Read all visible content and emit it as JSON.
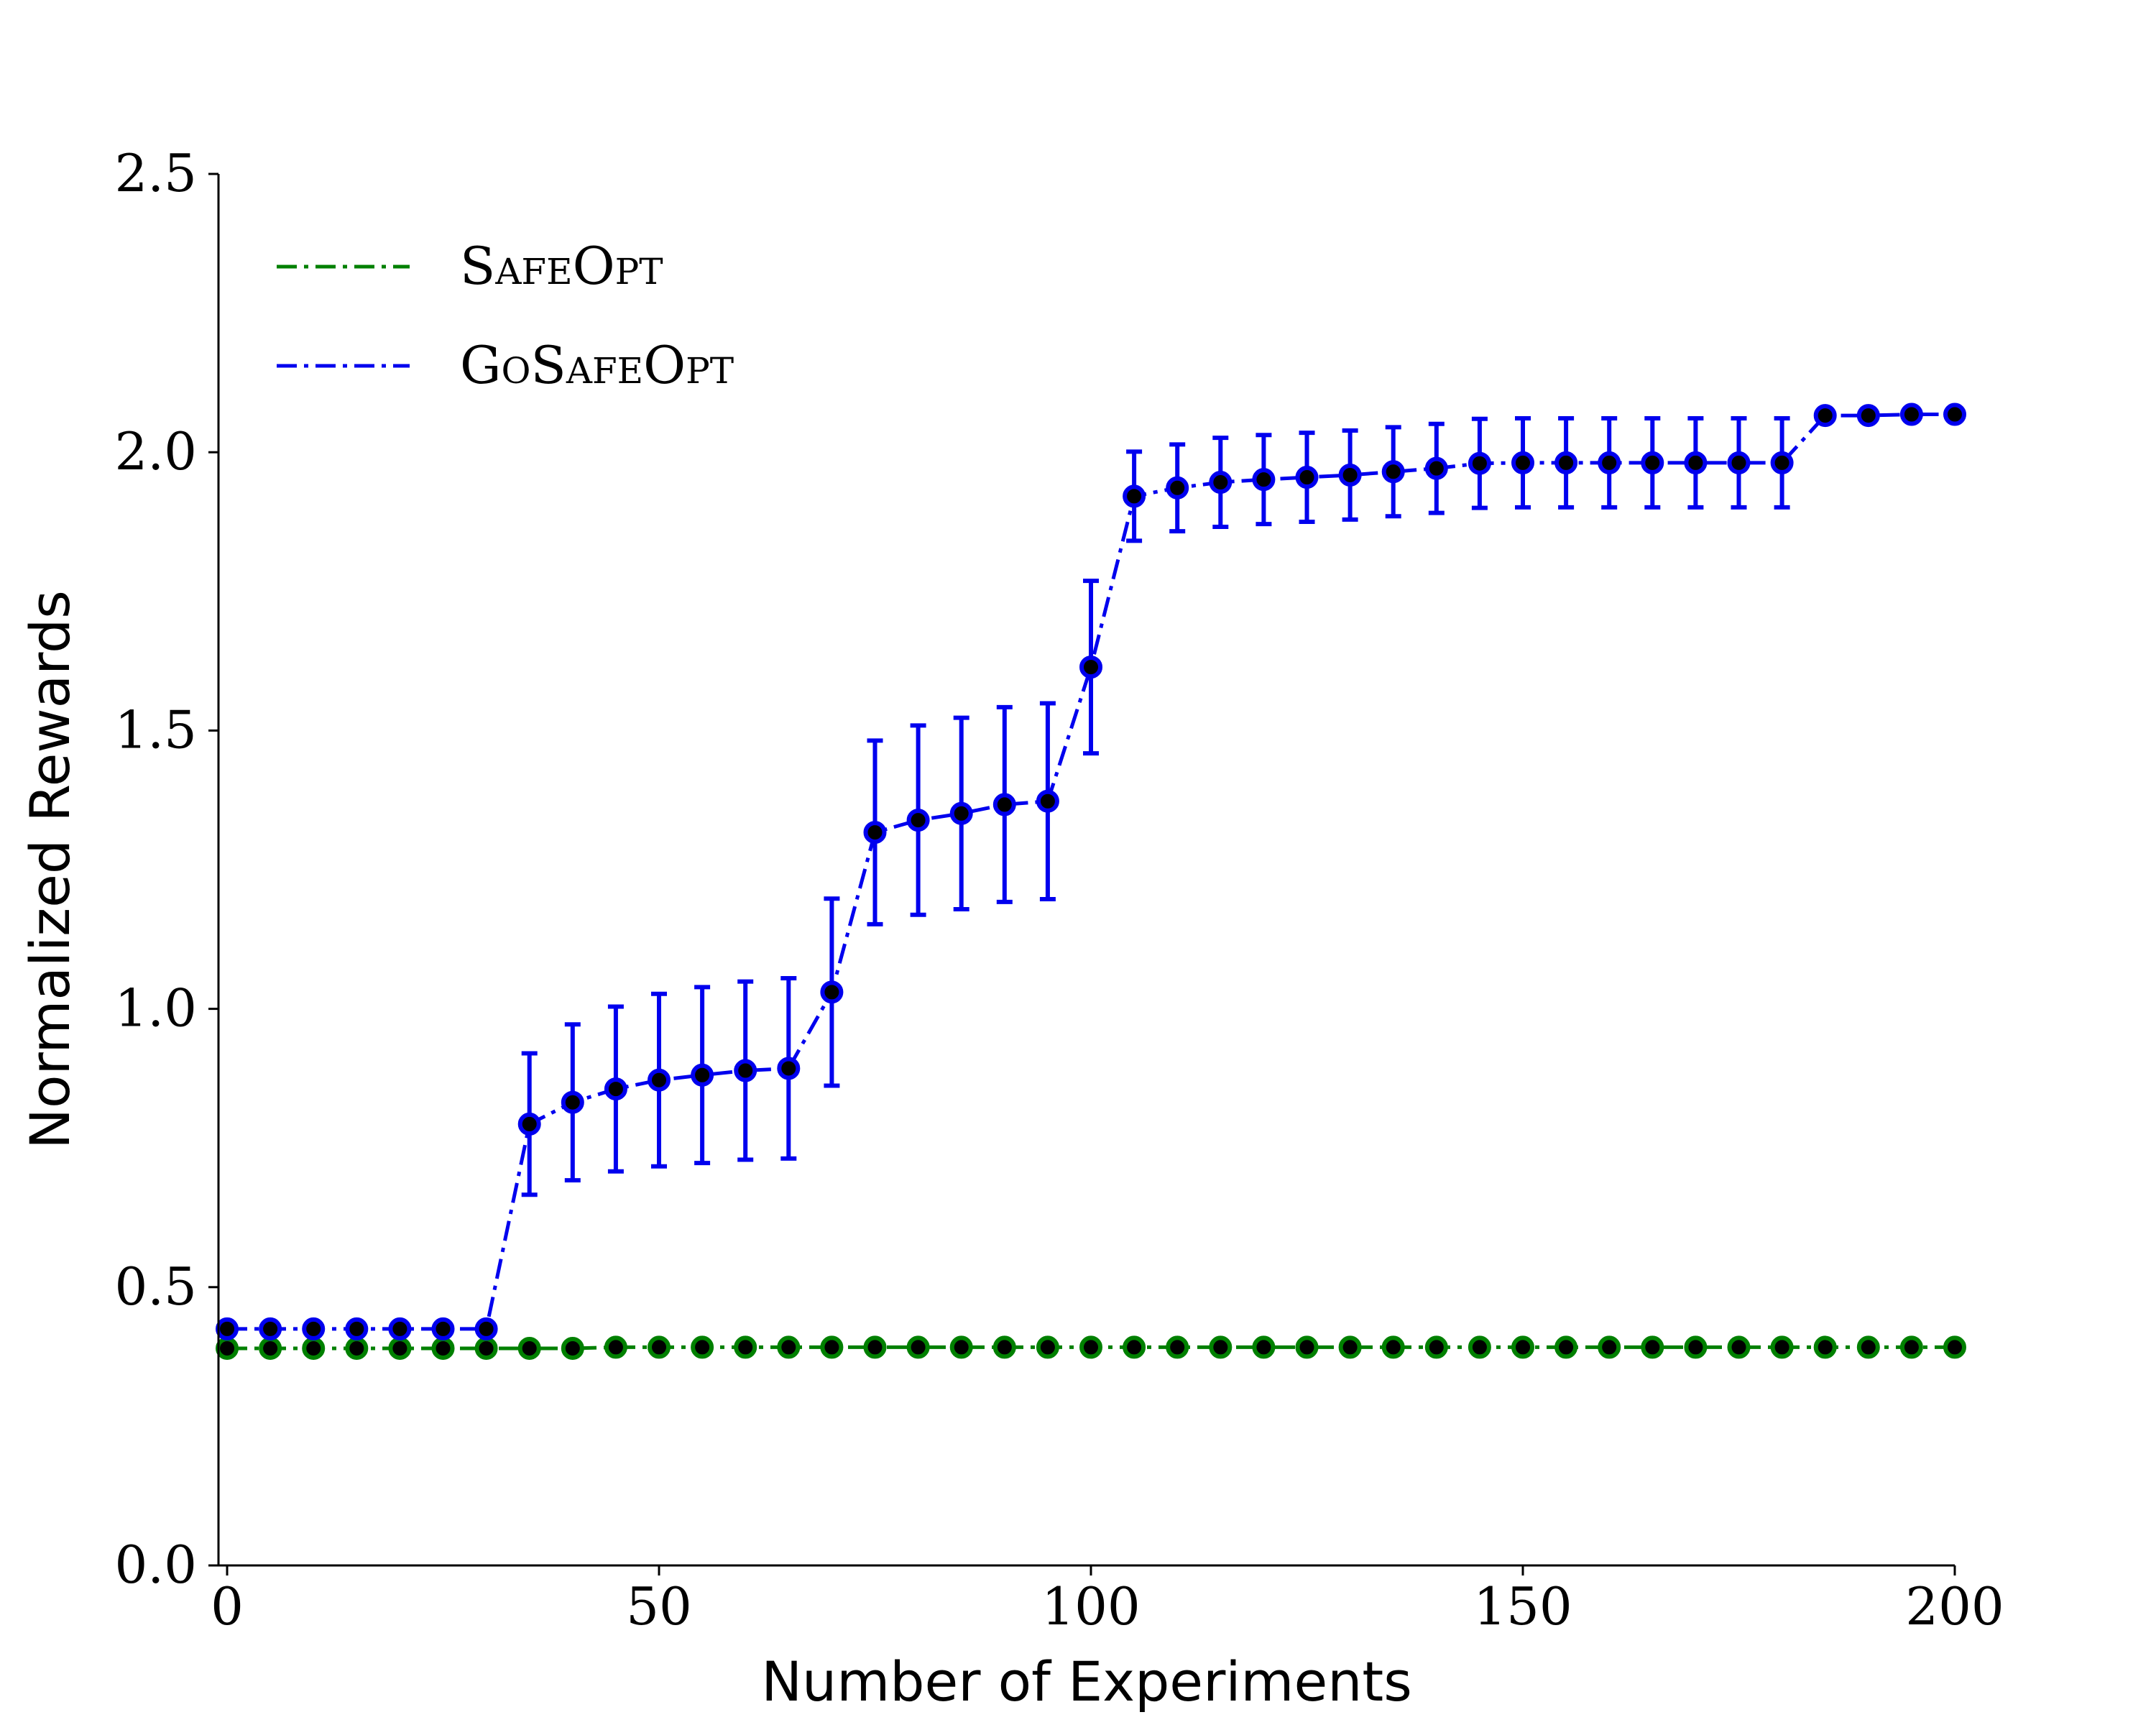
{
  "chart_data": {
    "type": "line",
    "title": "",
    "xlabel": "Number of Experiments",
    "ylabel": "Normalized Rewards",
    "xlim": [
      -1,
      200
    ],
    "ylim": [
      0,
      2.5
    ],
    "xticks": [
      0,
      50,
      100,
      150,
      200
    ],
    "yticks": [
      0.0,
      0.5,
      1.0,
      1.5,
      2.0,
      2.5
    ],
    "ytick_labels": [
      "0.0",
      "0.5",
      "1.0",
      "1.5",
      "2.0",
      "2.5"
    ],
    "grid": false,
    "legend_position": "top-left",
    "x": [
      0,
      5,
      10,
      15,
      20,
      25,
      30,
      35,
      40,
      45,
      50,
      55,
      60,
      65,
      70,
      75,
      80,
      85,
      90,
      95,
      100,
      105,
      110,
      115,
      120,
      125,
      130,
      135,
      140,
      145,
      150,
      155,
      160,
      165,
      170,
      175,
      180,
      185,
      190,
      195,
      200
    ],
    "series": [
      {
        "name": "SafeOpt",
        "color": "#008000",
        "line_style": "dash-dot",
        "values": [
          0.39,
          0.39,
          0.39,
          0.39,
          0.39,
          0.39,
          0.39,
          0.39,
          0.39,
          0.392,
          0.392,
          0.392,
          0.392,
          0.392,
          0.392,
          0.392,
          0.392,
          0.392,
          0.392,
          0.392,
          0.392,
          0.392,
          0.392,
          0.392,
          0.392,
          0.392,
          0.392,
          0.392,
          0.392,
          0.392,
          0.392,
          0.392,
          0.392,
          0.392,
          0.392,
          0.392,
          0.392,
          0.392,
          0.392,
          0.392,
          0.392
        ],
        "error": [
          0.012,
          0.012,
          0.012,
          0.012,
          0.012,
          0.012,
          0.012,
          0.012,
          0.012,
          0.012,
          0.012,
          0.012,
          0.012,
          0.012,
          0.012,
          0.012,
          0.012,
          0.012,
          0.012,
          0.012,
          0.012,
          0.012,
          0.012,
          0.012,
          0.012,
          0.012,
          0.012,
          0.012,
          0.012,
          0.012,
          0.012,
          0.012,
          0.012,
          0.012,
          0.012,
          0.012,
          0.012,
          0.012,
          0.012,
          0.012,
          0.012
        ]
      },
      {
        "name": "GoSafeOpt",
        "color": "#0000ee",
        "line_style": "dash-dot",
        "values": [
          0.425,
          0.425,
          0.425,
          0.425,
          0.425,
          0.425,
          0.425,
          0.793,
          0.832,
          0.856,
          0.872,
          0.881,
          0.889,
          0.893,
          1.03,
          1.317,
          1.339,
          1.351,
          1.367,
          1.373,
          1.614,
          1.921,
          1.936,
          1.946,
          1.951,
          1.955,
          1.959,
          1.965,
          1.971,
          1.98,
          1.981,
          1.981,
          1.981,
          1.981,
          1.981,
          1.981,
          1.981,
          2.066,
          2.066,
          2.068,
          2.068
        ],
        "error": [
          0.012,
          0.012,
          0.012,
          0.012,
          0.012,
          0.012,
          0.012,
          0.127,
          0.14,
          0.148,
          0.155,
          0.158,
          0.16,
          0.162,
          0.168,
          0.165,
          0.17,
          0.172,
          0.175,
          0.176,
          0.155,
          0.08,
          0.078,
          0.08,
          0.08,
          0.08,
          0.08,
          0.08,
          0.08,
          0.08,
          0.08,
          0.08,
          0.08,
          0.08,
          0.08,
          0.08,
          0.08,
          0.008,
          0.008,
          0.008,
          0.008
        ]
      }
    ]
  }
}
